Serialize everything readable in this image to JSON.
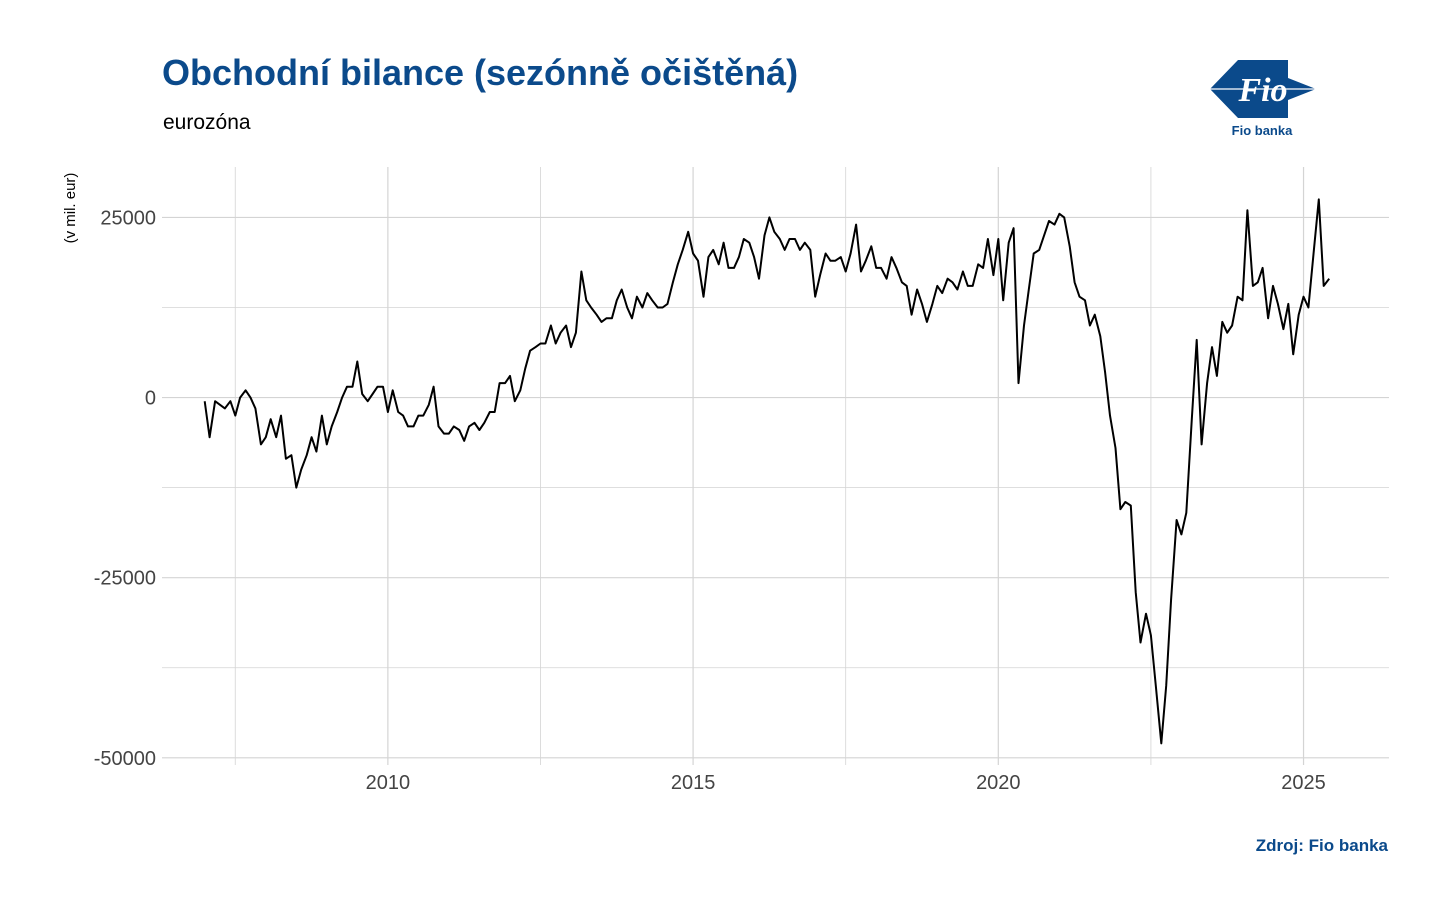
{
  "header": {
    "title": "Obchodní bilance (sezónně očištěná)",
    "subtitle": "eurozóna"
  },
  "logo": {
    "text": "Fio",
    "caption": "Fio banka"
  },
  "source": "Zdroj: Fio banka",
  "colors": {
    "title": "#0b4a8b",
    "line": "#000000",
    "grid": "#d4d4d4",
    "logo": "#0b4a8b"
  },
  "chart_data": {
    "type": "line",
    "title": "Obchodní bilance (sezónně očištěná)",
    "subtitle": "eurozóna",
    "xlabel": "",
    "ylabel": "(v mil. eur)",
    "xlim": [
      2006.3,
      2026.4
    ],
    "ylim": [
      -51000,
      32000
    ],
    "x_ticks": [
      2010,
      2015,
      2020,
      2025
    ],
    "x_tick_labels": [
      "2010",
      "2015",
      "2020",
      "2025"
    ],
    "y_ticks": [
      -50000,
      -25000,
      0,
      25000
    ],
    "y_tick_labels": [
      "-50000",
      "-25000",
      "0",
      "25000"
    ],
    "grid": true,
    "legend": "none",
    "series": [
      {
        "x": [
          2007.0,
          2007.08,
          2007.17,
          2007.25,
          2007.33,
          2007.42,
          2007.5,
          2007.58,
          2007.67,
          2007.75,
          2007.83,
          2007.92,
          2008.0,
          2008.08,
          2008.17,
          2008.25,
          2008.33,
          2008.42,
          2008.5,
          2008.58,
          2008.67,
          2008.75,
          2008.83,
          2008.92,
          2009.0,
          2009.08,
          2009.17,
          2009.25,
          2009.33,
          2009.42,
          2009.5,
          2009.58,
          2009.67,
          2009.75,
          2009.83,
          2009.92,
          2010.0,
          2010.08,
          2010.17,
          2010.25,
          2010.33,
          2010.42,
          2010.5,
          2010.58,
          2010.67,
          2010.75,
          2010.83,
          2010.92,
          2011.0,
          2011.08,
          2011.17,
          2011.25,
          2011.33,
          2011.42,
          2011.5,
          2011.58,
          2011.67,
          2011.75,
          2011.83,
          2011.92,
          2012.0,
          2012.08,
          2012.17,
          2012.25,
          2012.33,
          2012.42,
          2012.5,
          2012.58,
          2012.67,
          2012.75,
          2012.83,
          2012.92,
          2013.0,
          2013.08,
          2013.17,
          2013.25,
          2013.33,
          2013.42,
          2013.5,
          2013.58,
          2013.67,
          2013.75,
          2013.83,
          2013.92,
          2014.0,
          2014.08,
          2014.17,
          2014.25,
          2014.33,
          2014.42,
          2014.5,
          2014.58,
          2014.67,
          2014.75,
          2014.83,
          2014.92,
          2015.0,
          2015.08,
          2015.17,
          2015.25,
          2015.33,
          2015.42,
          2015.5,
          2015.58,
          2015.67,
          2015.75,
          2015.83,
          2015.92,
          2016.0,
          2016.08,
          2016.17,
          2016.25,
          2016.33,
          2016.42,
          2016.5,
          2016.58,
          2016.67,
          2016.75,
          2016.83,
          2016.92,
          2017.0,
          2017.08,
          2017.17,
          2017.25,
          2017.33,
          2017.42,
          2017.5,
          2017.58,
          2017.67,
          2017.75,
          2017.83,
          2017.92,
          2018.0,
          2018.08,
          2018.17,
          2018.25,
          2018.33,
          2018.42,
          2018.5,
          2018.58,
          2018.67,
          2018.75,
          2018.83,
          2018.92,
          2019.0,
          2019.08,
          2019.17,
          2019.25,
          2019.33,
          2019.42,
          2019.5,
          2019.58,
          2019.67,
          2019.75,
          2019.83,
          2019.92,
          2020.0,
          2020.08,
          2020.17,
          2020.25,
          2020.33,
          2020.42,
          2020.5,
          2020.58,
          2020.67,
          2020.75,
          2020.83,
          2020.92,
          2021.0,
          2021.08,
          2021.17,
          2021.25,
          2021.33,
          2021.42,
          2021.5,
          2021.58,
          2021.67,
          2021.75,
          2021.83,
          2021.92,
          2022.0,
          2022.08,
          2022.17,
          2022.25,
          2022.33,
          2022.42,
          2022.5,
          2022.58,
          2022.67,
          2022.75,
          2022.83,
          2022.92,
          2023.0,
          2023.08,
          2023.17,
          2023.25,
          2023.33,
          2023.42,
          2023.5,
          2023.58,
          2023.67,
          2023.75,
          2023.83,
          2023.92,
          2024.0,
          2024.08,
          2024.17,
          2024.25,
          2024.33,
          2024.42,
          2024.5,
          2024.58,
          2024.67,
          2024.75,
          2024.83,
          2024.92,
          2025.0,
          2025.08,
          2025.17,
          2025.25,
          2025.33,
          2025.42
        ],
        "values": [
          -500,
          -5500,
          -500,
          -1000,
          -1500,
          -500,
          -2500,
          0,
          1000,
          0,
          -1500,
          -6500,
          -5500,
          -3000,
          -5500,
          -2500,
          -8500,
          -8000,
          -12500,
          -10000,
          -8000,
          -5500,
          -7500,
          -2500,
          -6500,
          -4000,
          -2000,
          0,
          1500,
          1500,
          5000,
          500,
          -500,
          500,
          1500,
          1500,
          -2000,
          1000,
          -2000,
          -2500,
          -4000,
          -4000,
          -2500,
          -2500,
          -1000,
          1500,
          -4000,
          -5000,
          -5000,
          -4000,
          -4500,
          -6000,
          -4000,
          -3500,
          -4500,
          -3500,
          -2000,
          -2000,
          2000,
          2000,
          3000,
          -500,
          1000,
          4000,
          6500,
          7000,
          7500,
          7500,
          10000,
          7500,
          9000,
          10000,
          7000,
          9000,
          17500,
          13500,
          12500,
          11500,
          10500,
          11000,
          11000,
          13500,
          15000,
          12500,
          11000,
          14000,
          12500,
          14500,
          13500,
          12500,
          12500,
          13000,
          16000,
          18500,
          20500,
          23000,
          20000,
          19000,
          14000,
          19500,
          20500,
          18500,
          21500,
          18000,
          18000,
          19500,
          22000,
          21500,
          19500,
          16500,
          22500,
          25000,
          23000,
          22000,
          20500,
          22000,
          22000,
          20500,
          21500,
          20500,
          14000,
          17000,
          20000,
          19000,
          19000,
          19500,
          17500,
          20000,
          24000,
          17500,
          19000,
          21000,
          18000,
          18000,
          16500,
          19500,
          18000,
          16000,
          15500,
          11500,
          15000,
          13000,
          10500,
          13000,
          15500,
          14500,
          16500,
          16000,
          15000,
          17500,
          15500,
          15500,
          18500,
          18000,
          22000,
          17000,
          22000,
          13500,
          21500,
          23500,
          2000,
          10000,
          15000,
          20000,
          20500,
          22500,
          24500,
          24000,
          25500,
          25000,
          21000,
          16000,
          14000,
          13500,
          10000,
          11500,
          8500,
          3500,
          -2500,
          -7000,
          -15500,
          -14500,
          -15000,
          -27000,
          -34000,
          -30000,
          -33000,
          -40000,
          -48000,
          -40000,
          -28000,
          -17000,
          -19000,
          -16000,
          -3000,
          8000,
          -6500,
          2000,
          7000,
          3000,
          10500,
          9000,
          10000,
          14000,
          13500,
          26000,
          15500,
          16000,
          18000,
          11000,
          15500,
          13000,
          9500,
          13000,
          6000,
          11500,
          14000,
          12500,
          20500,
          27500,
          15500,
          16500
        ]
      }
    ]
  }
}
